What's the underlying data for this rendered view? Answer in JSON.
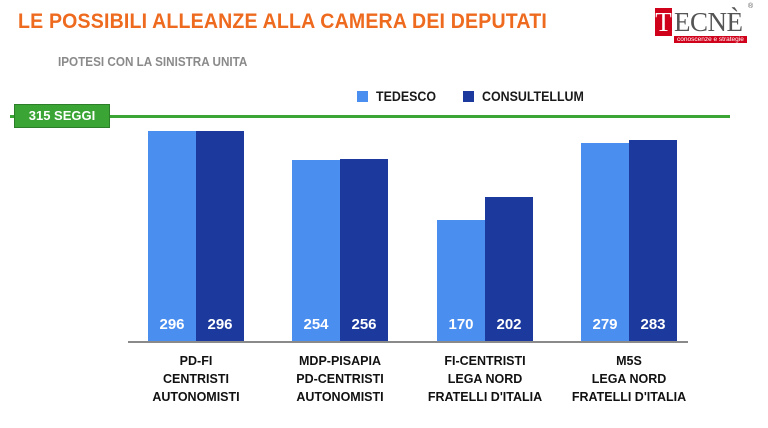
{
  "header": {
    "title": "LE POSSIBILI ALLEANZE ALLA CAMERA DEI DEPUTATI",
    "subtitle": "IPOTESI CON LA SINISTRA UNITA"
  },
  "logo": {
    "box_letter": "T",
    "word": "ECNÈ",
    "reg": "®",
    "tagline": "conoscenze e strategie"
  },
  "threshold": {
    "label": "315 SEGGI",
    "value": 315,
    "color": "#3aa535"
  },
  "chart_data": {
    "type": "bar",
    "categories": [
      [
        "PD-FI",
        "CENTRISTI",
        "AUTONOMISTI"
      ],
      [
        "MDP-PISAPIA",
        "PD-CENTRISTI",
        "AUTONOMISTI"
      ],
      [
        "FI-CENTRISTI",
        "LEGA NORD",
        "FRATELLI D'ITALIA"
      ],
      [
        "M5S",
        "LEGA NORD",
        "FRATELLI D'ITALIA"
      ]
    ],
    "series": [
      {
        "name": "TEDESCO",
        "color": "#4a8ef0",
        "values": [
          296,
          254,
          170,
          279
        ]
      },
      {
        "name": "CONSULTELLUM",
        "color": "#1c3a9e",
        "values": [
          296,
          256,
          202,
          283
        ]
      }
    ],
    "ylim": [
      0,
      315
    ],
    "legend_position": "top",
    "grid": false
  }
}
